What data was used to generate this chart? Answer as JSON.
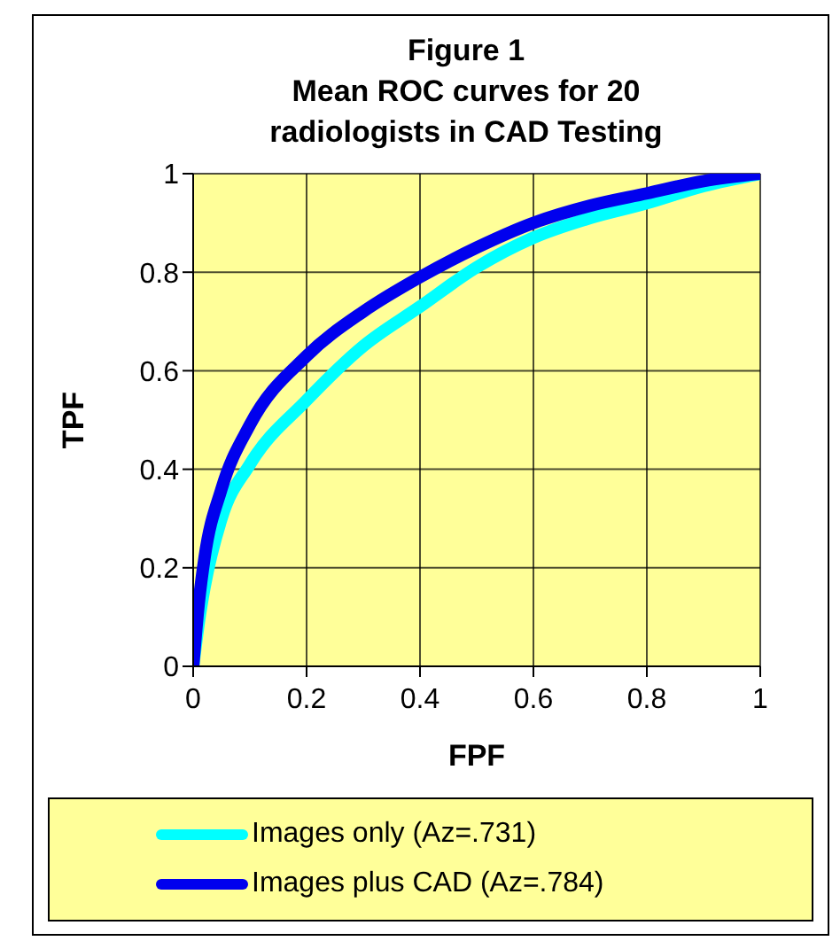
{
  "chart_data": {
    "type": "line",
    "title": "Figure 1\nMean ROC curves for 20\nradiologists in CAD Testing",
    "xlabel": "FPF",
    "ylabel": "TPF",
    "x": [
      0,
      0.01,
      0.02,
      0.05,
      0.1,
      0.2,
      0.3,
      0.4,
      0.5,
      0.6,
      0.7,
      0.8,
      0.9,
      1
    ],
    "series": [
      {
        "name": "Images only  (Az=.731)",
        "color": "#00ffff",
        "values": [
          0,
          0.09,
          0.16,
          0.3,
          0.41,
          0.54,
          0.65,
          0.73,
          0.81,
          0.87,
          0.91,
          0.94,
          0.975,
          1
        ]
      },
      {
        "name": "Images plus CAD (Az=.784)",
        "color": "#0000ee",
        "values": [
          0,
          0.13,
          0.22,
          0.36,
          0.49,
          0.63,
          0.72,
          0.79,
          0.85,
          0.9,
          0.935,
          0.96,
          0.985,
          1
        ]
      }
    ],
    "xlim": [
      0,
      1
    ],
    "xticks": [
      0,
      0.2,
      0.4,
      0.6,
      0.8,
      1
    ],
    "ylim": [
      0,
      1
    ],
    "yticks": [
      0,
      0.2,
      0.4,
      0.6,
      0.8,
      1
    ],
    "grid": true,
    "legend": "bottom"
  }
}
